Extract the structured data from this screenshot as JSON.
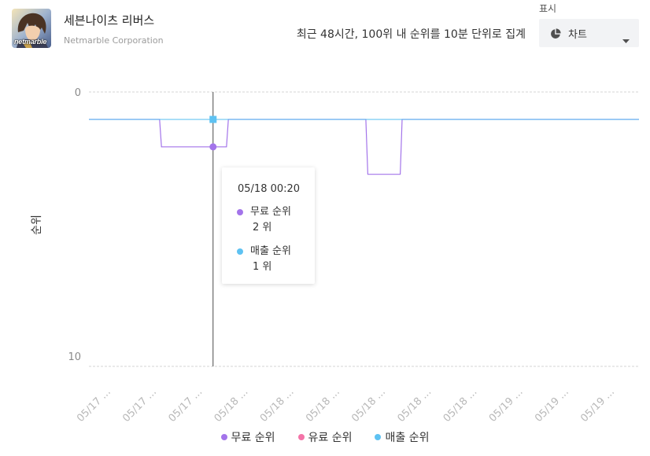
{
  "app": {
    "title": "세븐나이츠 리버스",
    "publisher": "Netmarble Corporation",
    "icon_badge": "netmarble"
  },
  "header": {
    "note": "최근 48시간, 100위 내 순위를 10분 단위로 집계",
    "display_label": "표시",
    "display_value": "차트",
    "display_icon": "pie-chart-icon",
    "dropdown_icon": "chevron-down-icon"
  },
  "chart_data": {
    "type": "line",
    "ylabel": "순위",
    "y_reversed": true,
    "ylim": [
      0,
      10
    ],
    "yticks": [
      0,
      10
    ],
    "xlim": [
      "05/17 13:30",
      "05/19 13:30"
    ],
    "xticks": [
      "05/17 ...",
      "05/17 ...",
      "05/17 ...",
      "05/18 ...",
      "05/18 ...",
      "05/18 ...",
      "05/18 ...",
      "05/18 ...",
      "05/18 ...",
      "05/19 ...",
      "05/19 ...",
      "05/19 ..."
    ],
    "grid": true,
    "legend_position": "bottom",
    "series": [
      {
        "name": "무료 순위",
        "color": "#a374ea",
        "x": [
          "05/17 13:30",
          "05/17 19:40",
          "05/17 19:50",
          "05/18 01:30",
          "05/18 01:40",
          "05/18 13:40",
          "05/18 13:50",
          "05/18 16:40",
          "05/18 16:50",
          "05/19 13:30"
        ],
        "y": [
          1,
          1,
          2,
          2,
          1,
          1,
          3,
          3,
          1,
          1
        ]
      },
      {
        "name": "유료 순위",
        "color": "#f474a8",
        "x": [],
        "y": []
      },
      {
        "name": "매출 순위",
        "color": "#5ec2f2",
        "x": [
          "05/17 13:30",
          "05/19 13:30"
        ],
        "y": [
          1,
          1
        ]
      }
    ],
    "tooltip": {
      "x": "05/18 00:20",
      "items": [
        {
          "series": "무료 순위",
          "value": "2 위"
        },
        {
          "series": "매출 순위",
          "value": "1 위"
        }
      ]
    }
  }
}
